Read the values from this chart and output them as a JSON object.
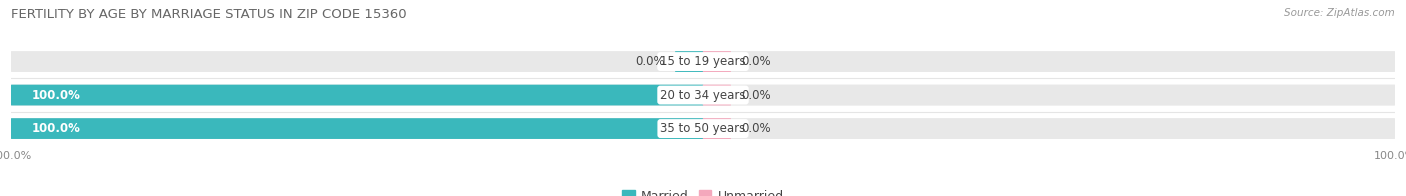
{
  "title": "FERTILITY BY AGE BY MARRIAGE STATUS IN ZIP CODE 15360",
  "source": "Source: ZipAtlas.com",
  "categories": [
    "15 to 19 years",
    "20 to 34 years",
    "35 to 50 years"
  ],
  "married_values": [
    0.0,
    100.0,
    100.0
  ],
  "unmarried_values": [
    0.0,
    0.0,
    0.0
  ],
  "married_color": "#3ab8bc",
  "unmarried_color": "#f4a8bc",
  "bar_bg_color": "#e8e8e8",
  "bar_height": 0.62,
  "xlim_left": -100,
  "xlim_right": 100,
  "title_fontsize": 9.5,
  "label_fontsize": 8.5,
  "tick_fontsize": 8,
  "source_fontsize": 7.5,
  "legend_fontsize": 9,
  "bg_color": "#ffffff",
  "title_color": "#666666",
  "text_color": "#444444",
  "row_bg_colors": [
    "#f0f0f0",
    "#e8e8e8",
    "#f0f0f0"
  ],
  "row_sep_color": "#dddddd",
  "small_bar_width": 4,
  "label_white_color": "#ffffff"
}
